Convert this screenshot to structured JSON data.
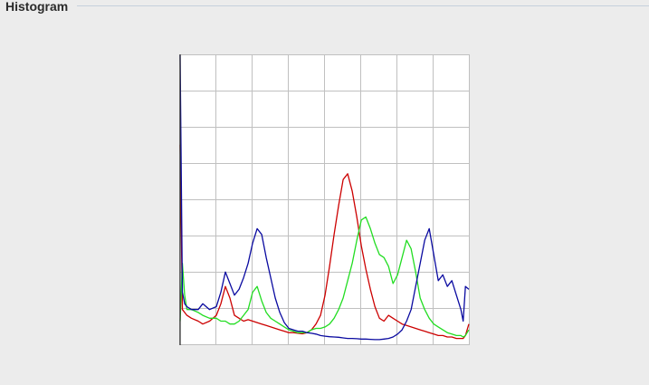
{
  "group": {
    "title": "Histogram"
  },
  "chart_data": {
    "type": "line",
    "title": "",
    "xlabel": "",
    "ylabel": "",
    "xlim": [
      0,
      255
    ],
    "ylim": [
      0,
      1
    ],
    "grid": true,
    "grid_divisions": 8,
    "x": [
      0,
      2,
      4,
      6,
      10,
      16,
      20,
      26,
      32,
      36,
      40,
      44,
      48,
      52,
      56,
      60,
      64,
      68,
      72,
      76,
      80,
      84,
      88,
      92,
      96,
      100,
      104,
      108,
      112,
      116,
      120,
      124,
      128,
      132,
      136,
      140,
      144,
      148,
      152,
      156,
      160,
      164,
      168,
      172,
      176,
      180,
      184,
      188,
      192,
      196,
      200,
      204,
      208,
      212,
      216,
      220,
      224,
      228,
      232,
      236,
      240,
      244,
      248,
      250,
      252,
      255
    ],
    "series": [
      {
        "color": "#cc0000",
        "values": [
          0.69,
          0.12,
          0.11,
          0.1,
          0.09,
          0.08,
          0.07,
          0.08,
          0.1,
          0.14,
          0.2,
          0.16,
          0.1,
          0.09,
          0.08,
          0.085,
          0.08,
          0.075,
          0.07,
          0.065,
          0.06,
          0.055,
          0.05,
          0.045,
          0.04,
          0.04,
          0.038,
          0.036,
          0.04,
          0.05,
          0.07,
          0.1,
          0.17,
          0.27,
          0.38,
          0.48,
          0.57,
          0.59,
          0.53,
          0.44,
          0.34,
          0.26,
          0.19,
          0.13,
          0.09,
          0.08,
          0.1,
          0.09,
          0.08,
          0.07,
          0.065,
          0.06,
          0.055,
          0.05,
          0.045,
          0.04,
          0.035,
          0.03,
          0.03,
          0.025,
          0.025,
          0.02,
          0.02,
          0.02,
          0.03,
          0.07
        ]
      },
      {
        "color": "#22dd22",
        "values": [
          0.08,
          0.28,
          0.17,
          0.12,
          0.12,
          0.11,
          0.1,
          0.09,
          0.09,
          0.08,
          0.08,
          0.07,
          0.07,
          0.08,
          0.1,
          0.12,
          0.18,
          0.2,
          0.15,
          0.11,
          0.09,
          0.08,
          0.07,
          0.06,
          0.05,
          0.045,
          0.04,
          0.04,
          0.04,
          0.05,
          0.055,
          0.055,
          0.06,
          0.07,
          0.09,
          0.12,
          0.16,
          0.22,
          0.28,
          0.36,
          0.43,
          0.44,
          0.4,
          0.35,
          0.31,
          0.3,
          0.27,
          0.21,
          0.24,
          0.3,
          0.36,
          0.33,
          0.25,
          0.16,
          0.12,
          0.09,
          0.07,
          0.06,
          0.05,
          0.04,
          0.035,
          0.03,
          0.03,
          0.025,
          0.03,
          0.05
        ]
      },
      {
        "color": "#0a0aa0",
        "values": [
          1.0,
          0.18,
          0.14,
          0.13,
          0.12,
          0.12,
          0.14,
          0.12,
          0.13,
          0.18,
          0.25,
          0.21,
          0.17,
          0.19,
          0.23,
          0.28,
          0.35,
          0.4,
          0.38,
          0.3,
          0.23,
          0.16,
          0.11,
          0.075,
          0.055,
          0.05,
          0.045,
          0.045,
          0.04,
          0.038,
          0.035,
          0.03,
          0.028,
          0.026,
          0.025,
          0.024,
          0.022,
          0.02,
          0.02,
          0.019,
          0.018,
          0.018,
          0.017,
          0.016,
          0.016,
          0.018,
          0.02,
          0.025,
          0.035,
          0.05,
          0.08,
          0.12,
          0.2,
          0.28,
          0.36,
          0.4,
          0.31,
          0.22,
          0.24,
          0.2,
          0.22,
          0.17,
          0.12,
          0.08,
          0.2,
          0.19
        ]
      }
    ]
  }
}
